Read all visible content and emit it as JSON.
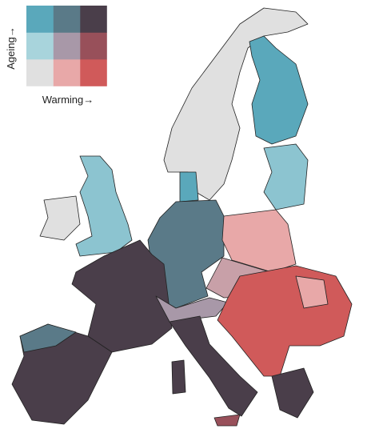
{
  "legend": {
    "y_label": "Ageing→",
    "x_label": "Warming→",
    "colors": [
      [
        "#5aa8bb",
        "#5a7a88",
        "#4a3e4a"
      ],
      [
        "#a8d4dc",
        "#a898a8",
        "#98505a"
      ],
      [
        "#e0e0e0",
        "#e8a8a8",
        "#d05a5a"
      ]
    ]
  }
}
